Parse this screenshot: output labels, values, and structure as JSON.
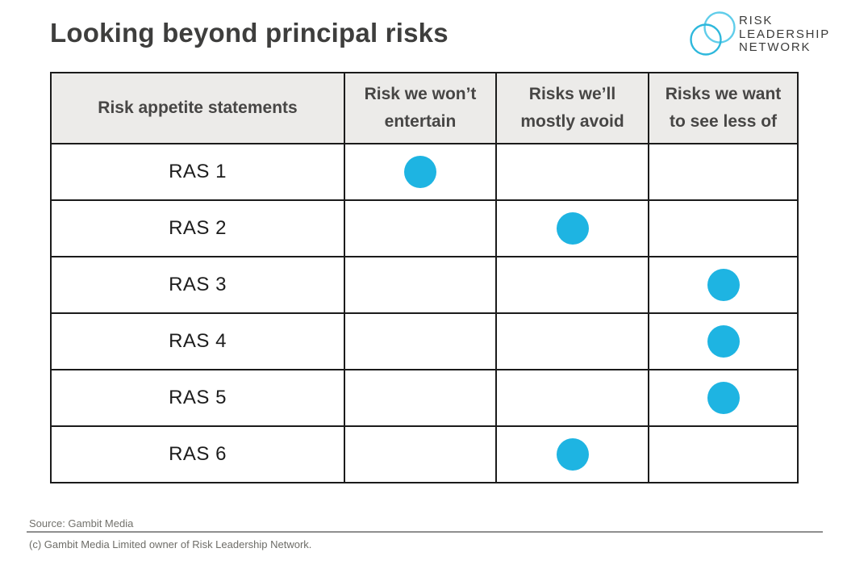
{
  "title": "Looking beyond principal risks",
  "logo": {
    "lines": [
      "RISK",
      "LEADERSHIP",
      "NETWORK"
    ]
  },
  "chart_data": {
    "type": "table",
    "title": "Looking beyond principal risks",
    "columns": [
      "Risk appetite statements",
      "Risk we won’t entertain",
      "Risks we’ll mostly avoid",
      "Risks we want to see less of"
    ],
    "rows": [
      {
        "label": "RAS 1",
        "dot_column_index": 1,
        "dot_column": "Risk we won’t entertain"
      },
      {
        "label": "RAS 2",
        "dot_column_index": 2,
        "dot_column": "Risks we’ll mostly avoid"
      },
      {
        "label": "RAS 3",
        "dot_column_index": 3,
        "dot_column": "Risks we want to see less of"
      },
      {
        "label": "RAS 4",
        "dot_column_index": 3,
        "dot_column": "Risks we want to see less of"
      },
      {
        "label": "RAS 5",
        "dot_column_index": 3,
        "dot_column": "Risks we want to see less of"
      },
      {
        "label": "RAS 6",
        "dot_column_index": 2,
        "dot_column": "Risks we’ll mostly avoid"
      }
    ]
  },
  "footer": {
    "source": "Source: Gambit Media",
    "copyright": "(c) Gambit Media Limited owner of Risk Leadership Network."
  },
  "colors": {
    "dot": "#1eb4e2",
    "header_bg": "#ecebe9",
    "border": "#1b1b1b",
    "title_text": "#3e3e3d",
    "logo_text": "#3b3b3a",
    "logo_circle_light": "#60cdea",
    "logo_circle_dark": "#2eb8dc"
  }
}
